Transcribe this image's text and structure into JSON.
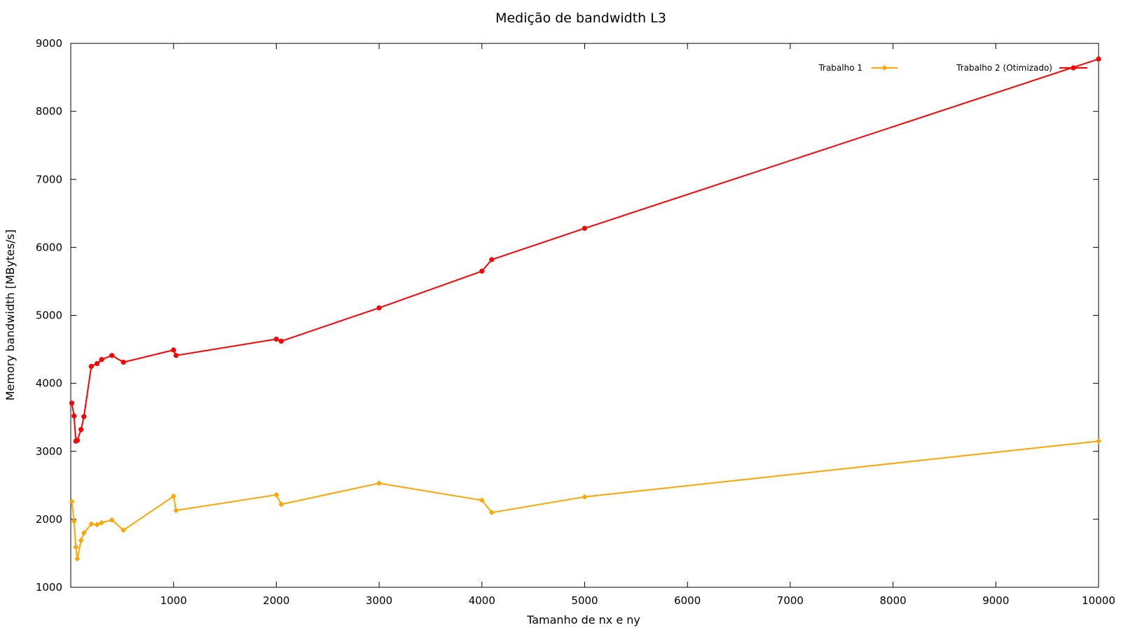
{
  "chart_data": {
    "type": "line",
    "title": "Medição de bandwidth L3",
    "xlabel": "Tamanho de nx e ny",
    "ylabel": "Memory bandwidth [MBytes/s]",
    "xlim": [
      0,
      10000
    ],
    "ylim": [
      1000,
      9000
    ],
    "x_ticks": [
      1000,
      2000,
      3000,
      4000,
      5000,
      6000,
      7000,
      8000,
      9000,
      10000
    ],
    "y_ticks": [
      1000,
      2000,
      3000,
      4000,
      5000,
      6000,
      7000,
      8000,
      9000
    ],
    "grid": false,
    "legend_position": "top-right",
    "series": [
      {
        "name": "Trabalho 1",
        "color": "#FFA500",
        "marker": "diamond",
        "x": [
          10,
          32,
          50,
          64,
          100,
          128,
          200,
          256,
          300,
          400,
          512,
          1000,
          1024,
          2000,
          2048,
          3000,
          4000,
          4096,
          5000,
          10000
        ],
        "y": [
          2260,
          1970,
          1590,
          1420,
          1690,
          1800,
          1930,
          1920,
          1950,
          1990,
          1840,
          2340,
          2130,
          2360,
          2220,
          2530,
          2280,
          2100,
          2330,
          3150
        ]
      },
      {
        "name": "Trabalho 2 (Otimizado)",
        "color": "#FF0000",
        "marker": "circle",
        "x": [
          10,
          32,
          50,
          64,
          100,
          128,
          200,
          256,
          300,
          400,
          512,
          1000,
          1024,
          2000,
          2048,
          3000,
          4000,
          4096,
          5000,
          10000
        ],
        "y": [
          3710,
          3520,
          3150,
          3160,
          3320,
          3510,
          4250,
          4290,
          4350,
          4410,
          4310,
          4490,
          4410,
          4650,
          4620,
          5110,
          5650,
          5820,
          6280,
          8770
        ]
      }
    ]
  }
}
